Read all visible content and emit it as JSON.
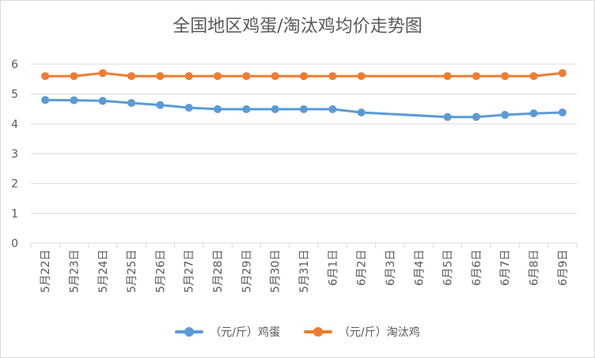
{
  "chart_data": {
    "type": "line",
    "title": "全国地区鸡蛋/淘汰鸡均价走势图",
    "categories": [
      "5月22日",
      "5月23日",
      "5月24日",
      "5月25日",
      "5月26日",
      "5月27日",
      "5月28日",
      "5月29日",
      "5月30日",
      "5月31日",
      "6月1日",
      "6月2日",
      "6月3日",
      "6月4日",
      "6月5日",
      "6月6日",
      "6月7日",
      "6月8日",
      "6月9日"
    ],
    "series": [
      {
        "name": "（元/斤）鸡蛋",
        "color": "#5b9bd5",
        "values": [
          4.8,
          4.79,
          4.77,
          4.7,
          4.63,
          4.54,
          4.49,
          4.49,
          4.49,
          4.49,
          4.49,
          4.38,
          null,
          null,
          4.23,
          4.23,
          4.3,
          4.35,
          4.38
        ]
      },
      {
        "name": "（元/斤）淘汰鸡",
        "color": "#ed7d31",
        "values": [
          5.6,
          5.6,
          5.7,
          5.6,
          5.6,
          5.6,
          5.6,
          5.6,
          5.6,
          5.6,
          5.6,
          5.6,
          null,
          null,
          5.6,
          5.6,
          5.6,
          5.6,
          5.7
        ]
      }
    ],
    "ylim": [
      0,
      6
    ],
    "yticks": [
      0,
      1,
      2,
      3,
      4,
      5,
      6
    ],
    "grid": true,
    "legend_position": "bottom"
  }
}
